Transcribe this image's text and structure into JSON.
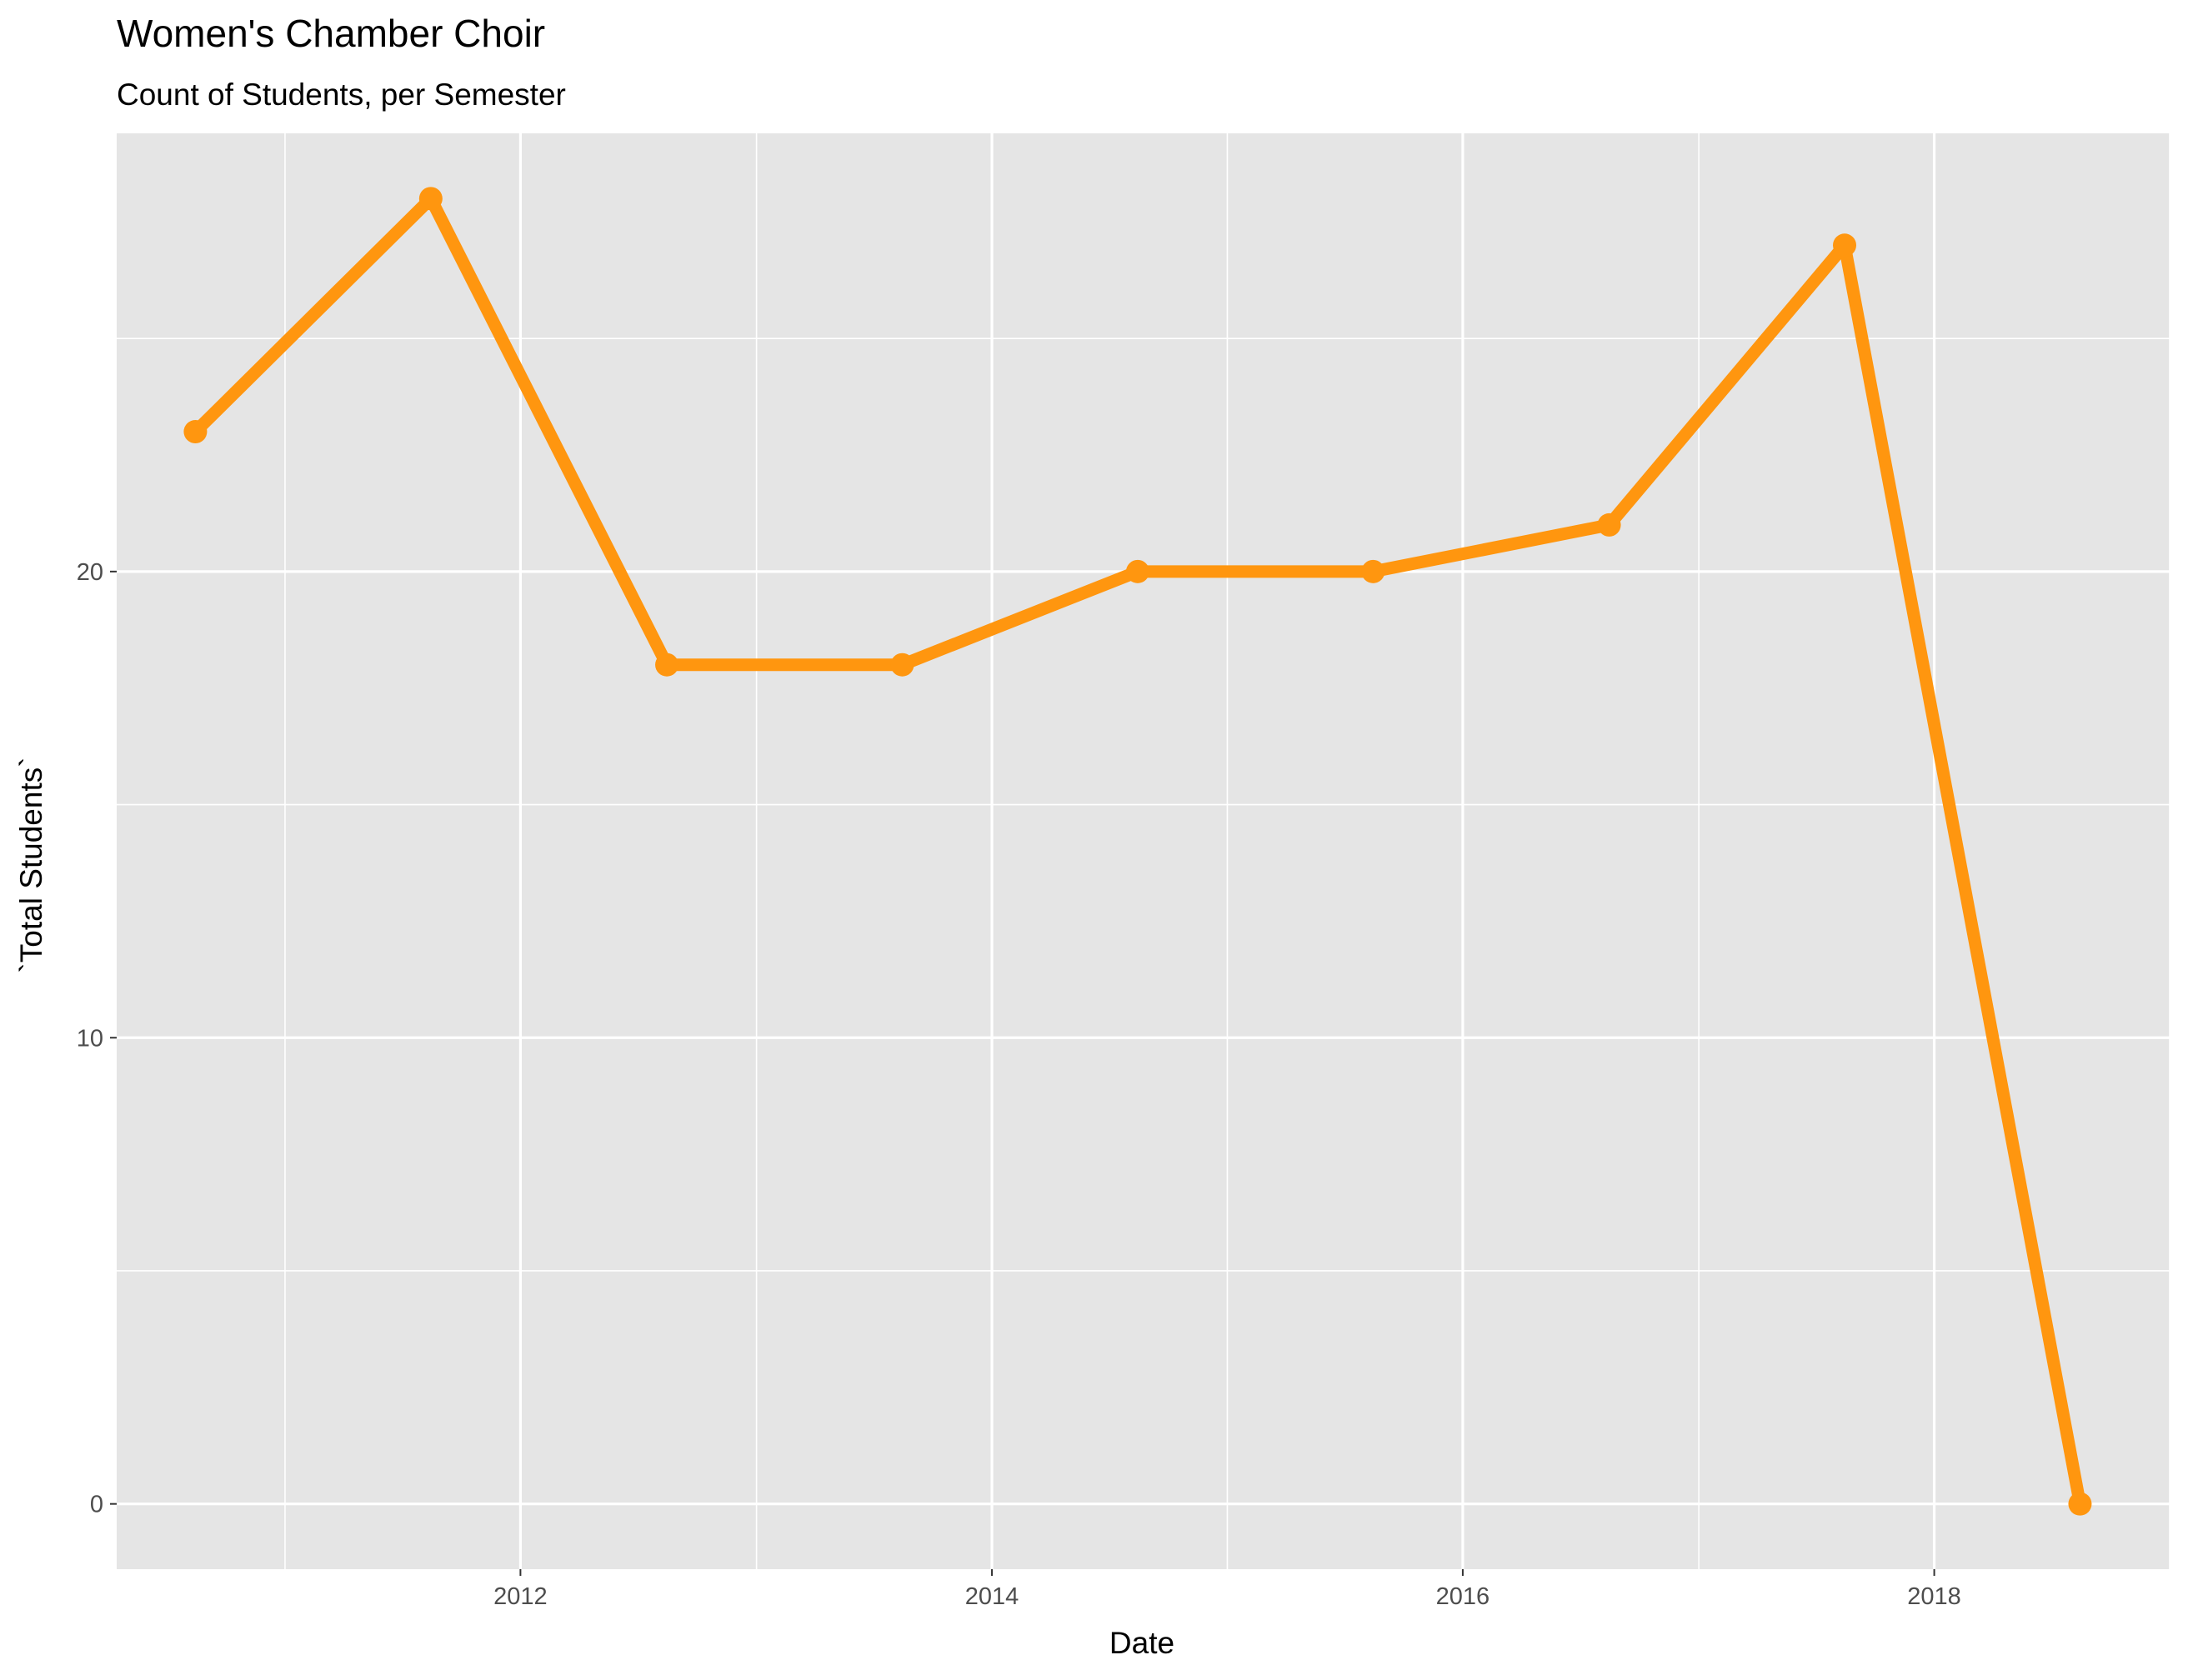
{
  "chart_data": {
    "type": "line",
    "title": "Women's Chamber Choir",
    "subtitle": "Count of Students, per Semester",
    "xlabel": "Date",
    "ylabel": "`Total Students`",
    "x_ticks": [
      "2012",
      "2014",
      "2016",
      "2018"
    ],
    "y_ticks": [
      "0",
      "10",
      "20"
    ],
    "xlim": [
      "2010-04-15",
      "2019-01-01"
    ],
    "ylim": [
      -1.4,
      29.4
    ],
    "grid": true,
    "series": [
      {
        "x": [
          "2010-08-15",
          "2011-08-15",
          "2012-08-15",
          "2013-08-15",
          "2014-08-15",
          "2015-08-15",
          "2016-08-15",
          "2017-08-15",
          "2018-08-15"
        ],
        "values": [
          23,
          28,
          18,
          18,
          20,
          20,
          21,
          27,
          0
        ]
      }
    ],
    "colors": {
      "line": "#FF960F",
      "panel": "#E5E5E5",
      "grid": "#FFFFFF"
    }
  }
}
